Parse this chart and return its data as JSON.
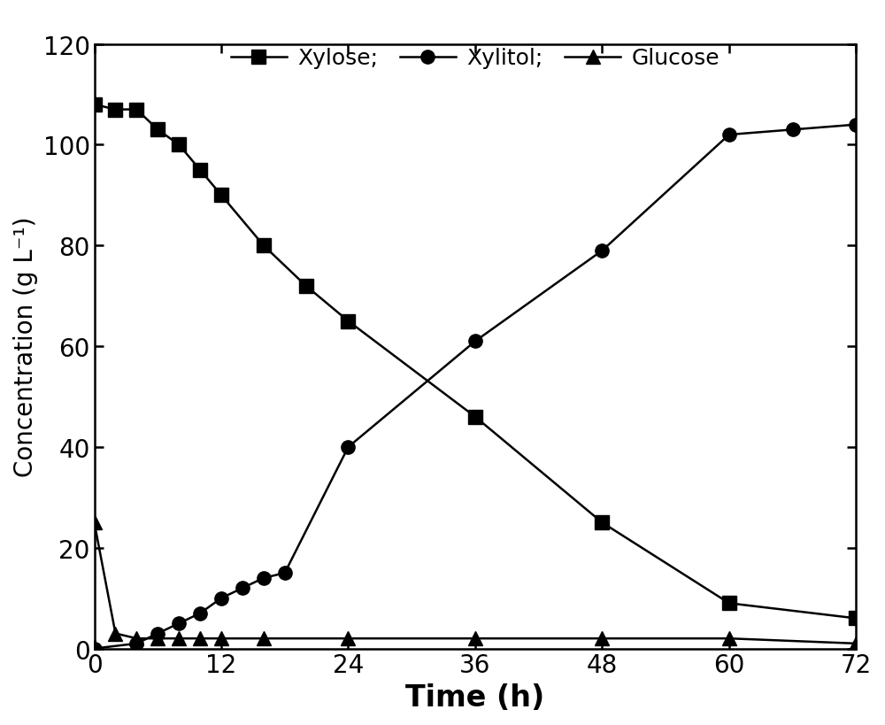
{
  "xylose_x": [
    0,
    2,
    4,
    6,
    8,
    10,
    12,
    16,
    20,
    24,
    36,
    48,
    60,
    72
  ],
  "xylose_y": [
    108,
    107,
    107,
    103,
    100,
    95,
    90,
    80,
    72,
    65,
    46,
    25,
    9,
    6
  ],
  "xylitol_x": [
    0,
    4,
    6,
    8,
    10,
    12,
    14,
    16,
    18,
    24,
    36,
    48,
    60,
    66,
    72
  ],
  "xylitol_y": [
    0,
    1,
    3,
    5,
    7,
    10,
    12,
    14,
    15,
    40,
    61,
    79,
    102,
    103,
    104
  ],
  "glucose_x": [
    0,
    2,
    4,
    6,
    8,
    10,
    12,
    16,
    24,
    36,
    48,
    60,
    72
  ],
  "glucose_y": [
    25,
    3,
    2,
    2,
    2,
    2,
    2,
    2,
    2,
    2,
    2,
    2,
    1
  ],
  "line_color": "#000000",
  "xlabel": "Time (h)",
  "ylabel": "Concentration (g L⁻¹)",
  "xlim": [
    0,
    72
  ],
  "ylim": [
    0,
    120
  ],
  "xticks": [
    0,
    12,
    24,
    36,
    48,
    60,
    72
  ],
  "yticks": [
    0,
    20,
    40,
    60,
    80,
    100,
    120
  ],
  "legend_labels": [
    "Xylose;",
    "Xylitol;",
    "Glucose"
  ],
  "marker_size": 11,
  "linewidth": 1.8,
  "xlabel_fontsize": 24,
  "ylabel_fontsize": 20,
  "tick_fontsize": 20,
  "legend_fontsize": 18,
  "background_color": "#ffffff"
}
